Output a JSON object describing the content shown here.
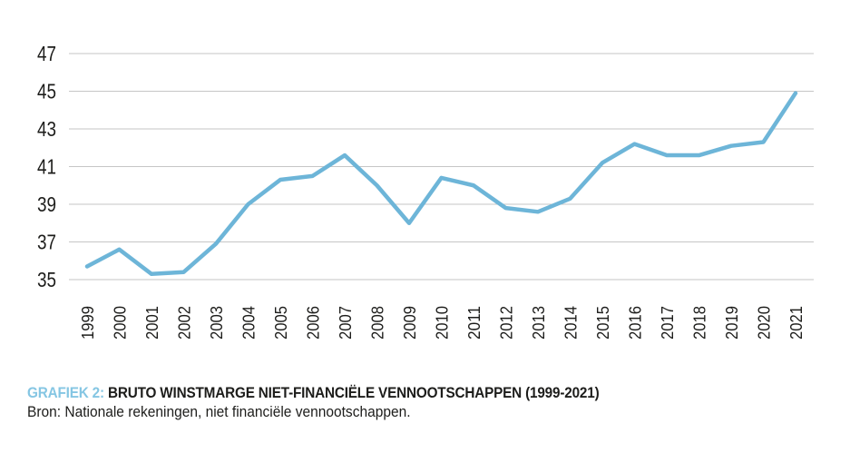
{
  "caption": {
    "label": "GRAFIEK 2:",
    "title": "BRUTO WINSTMARGE NIET-FINANCIËLE VENNOOTSCHAPPEN (1999-2021)",
    "source": "Bron: Nationale rekeningen, niet financiële vennootschappen."
  },
  "colors": {
    "line": "#6DB5D8",
    "grid": "#C6C6C6",
    "tick_text": "#1D1D1B",
    "caption_accent": "#85C6E3",
    "caption_text": "#1D1D1B",
    "background": "#FFFFFF"
  },
  "chart_data": {
    "type": "line",
    "title": "Bruto winstmarge niet-financiële vennootschappen (1999-2021)",
    "xlabel": "",
    "ylabel": "",
    "x": [
      1999,
      2000,
      2001,
      2002,
      2003,
      2004,
      2005,
      2006,
      2007,
      2008,
      2009,
      2010,
      2011,
      2012,
      2013,
      2014,
      2015,
      2016,
      2017,
      2018,
      2019,
      2020,
      2021
    ],
    "series": [
      {
        "name": "Bruto winstmarge",
        "values": [
          35.7,
          36.6,
          35.3,
          35.4,
          36.9,
          39.0,
          40.3,
          40.5,
          41.6,
          40.0,
          38.0,
          40.4,
          40.0,
          38.8,
          38.6,
          39.3,
          41.2,
          42.2,
          41.6,
          41.6,
          42.1,
          42.3,
          44.9
        ]
      }
    ],
    "y_ticks": [
      35,
      37,
      39,
      41,
      43,
      45,
      47
    ],
    "ylim": [
      35,
      47
    ],
    "grid": true,
    "legend": false,
    "line_color": "#6DB5D8",
    "grid_color": "#C6C6C6",
    "tick_color": "#1D1D1B"
  }
}
